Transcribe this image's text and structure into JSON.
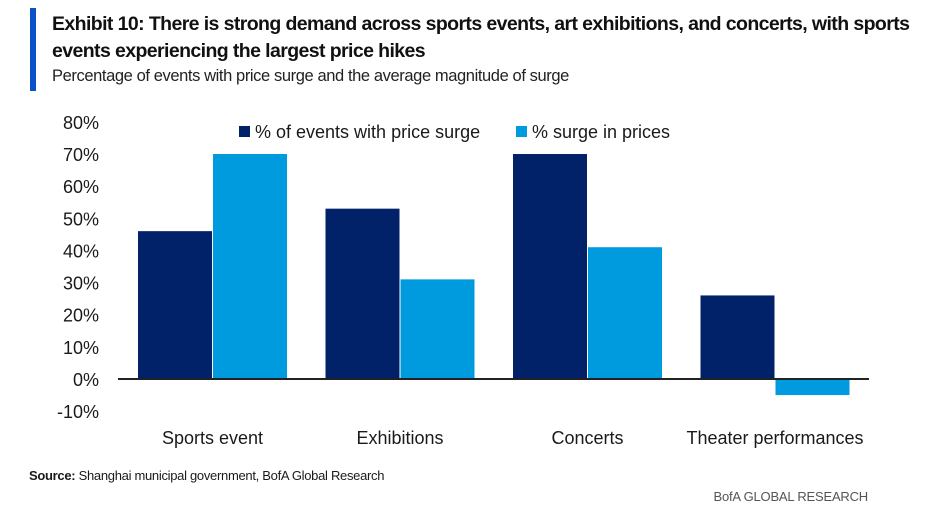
{
  "header": {
    "title": "Exhibit 10: There is strong demand across sports events, art exhibitions, and concerts, with sports events experiencing the largest price hikes",
    "subtitle": "Percentage of events with price surge and the average magnitude of surge"
  },
  "colors": {
    "accent": "#0b52c9",
    "series_dark": "#012169",
    "series_light": "#009ade",
    "axis": "#222222"
  },
  "chart_data": {
    "type": "bar",
    "title": "Percentage of events with price surge and the average magnitude of surge",
    "xlabel": "",
    "ylabel": "",
    "categories": [
      "Sports event",
      "Exhibitions",
      "Concerts",
      "Theater performances"
    ],
    "series": [
      {
        "name": "% of events with price surge",
        "color": "#012169",
        "values": [
          46,
          53,
          70,
          26
        ]
      },
      {
        "name": "% surge in prices",
        "color": "#009ade",
        "values": [
          70,
          31,
          41,
          -5
        ]
      }
    ],
    "ylim": [
      -10,
      80
    ],
    "yticks": [
      80,
      70,
      60,
      50,
      40,
      30,
      20,
      10,
      0,
      -10
    ],
    "ytick_labels": [
      "80%",
      "70%",
      "60%",
      "50%",
      "40%",
      "30%",
      "20%",
      "10%",
      "0%",
      "-10%"
    ],
    "grid": false,
    "legend_position": "top-center",
    "unit": "%"
  },
  "footer": {
    "source_label": "Source:",
    "source_text": " Shanghai municipal government, BofA Global Research",
    "brand": "BofA GLOBAL RESEARCH"
  }
}
